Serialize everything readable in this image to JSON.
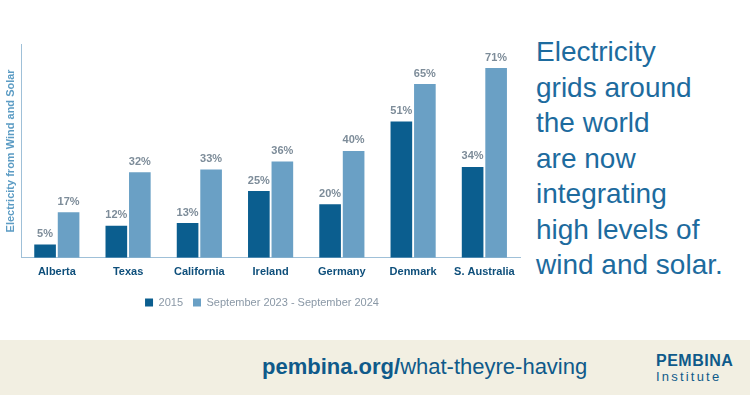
{
  "chart_data": {
    "type": "bar",
    "ylabel": "Electricity from Wind and Solar",
    "categories": [
      "Alberta",
      "Texas",
      "California",
      "Ireland",
      "Germany",
      "Denmark",
      "S. Australia"
    ],
    "series": [
      {
        "name": "2015",
        "color": "#0b5e8f",
        "values": [
          5,
          12,
          13,
          25,
          20,
          51,
          34
        ],
        "value_labels": [
          "5%",
          "12%",
          "13%",
          "25%",
          "20%",
          "51%",
          "34%"
        ]
      },
      {
        "name": "September 2023 - September 2024",
        "color": "#6aa0c5",
        "values": [
          17,
          32,
          33,
          36,
          40,
          65,
          71
        ],
        "value_labels": [
          "17%",
          "32%",
          "33%",
          "36%",
          "40%",
          "65%",
          "71%"
        ]
      }
    ],
    "ylim": [
      0,
      80
    ],
    "grid": false,
    "legend": "bottom",
    "data_labels": true,
    "tick_labels": "x"
  },
  "headline": [
    "Electricity",
    "grids around",
    "the world",
    "are now",
    "integrating",
    "high levels of",
    "wind and solar."
  ],
  "footer": {
    "url_domain": "pembina.org/",
    "url_path": "what-theyre-having"
  },
  "logo": {
    "name": "PEMBINA",
    "sub": "Institute"
  }
}
